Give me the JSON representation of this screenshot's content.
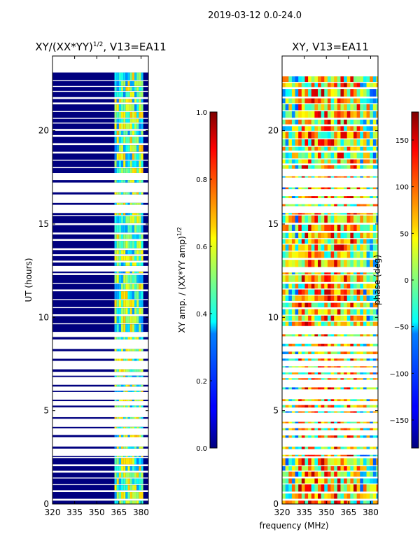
{
  "figure": {
    "suptitle": "2019-03-12 0.0-24.0",
    "xlabel": "frequency (MHz)"
  },
  "chart_data": [
    {
      "type": "heatmap",
      "title_main": "XY/(XX*YY)",
      "title_sup": "1/2",
      "title_tail": ", V13=EA11",
      "xlabel": "",
      "ylabel": "UT (hours)",
      "x_range": [
        320,
        385
      ],
      "y_range": [
        0,
        24
      ],
      "x_ticks": [
        320,
        335,
        350,
        365,
        380
      ],
      "y_ticks": [
        0,
        5,
        10,
        15,
        20
      ],
      "colorbar": {
        "label_main": "XY amp. / (XX*YY amp)",
        "label_sup": "1/2",
        "range": [
          0.0,
          1.0
        ],
        "ticks": [
          0.0,
          0.2,
          0.4,
          0.6,
          0.8,
          1.0
        ],
        "tick_labels": [
          "0.0",
          "0.2",
          "0.4",
          "0.6",
          "0.8",
          "1.0"
        ],
        "colormap": "jet"
      }
    },
    {
      "type": "heatmap",
      "title_main": "XY, V13=EA11",
      "xlabel": "",
      "ylabel": "",
      "x_range": [
        320,
        385
      ],
      "y_range": [
        0,
        24
      ],
      "x_ticks": [
        320,
        335,
        350,
        365,
        380
      ],
      "y_ticks": [
        0,
        5,
        10,
        15,
        20
      ],
      "colorbar": {
        "label": "phase (deg)",
        "range": [
          -180,
          180
        ],
        "ticks": [
          -150,
          -100,
          -50,
          0,
          50,
          100,
          150
        ],
        "tick_labels": [
          "−150",
          "−100",
          "−50",
          "0",
          "50",
          "100",
          "150"
        ],
        "colormap": "jet"
      }
    }
  ]
}
